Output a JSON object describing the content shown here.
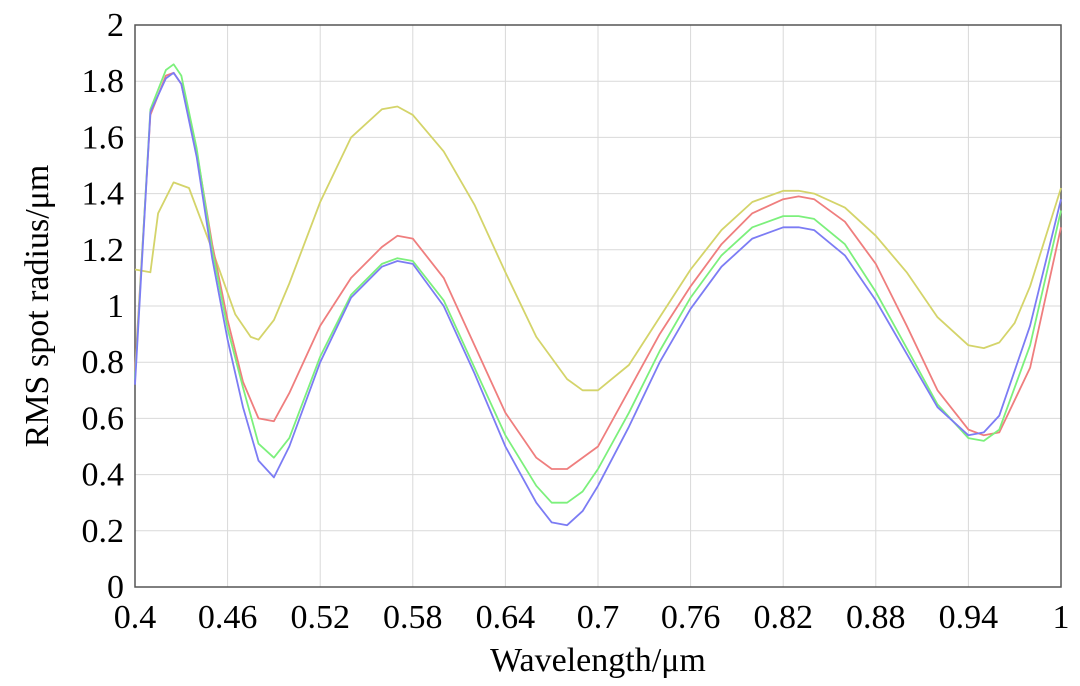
{
  "chart_data": {
    "type": "line",
    "title": "",
    "xlabel": "Wavelength/μm",
    "ylabel": "RMS spot radius/μm",
    "xlim": [
      0.4,
      1.0
    ],
    "ylim": [
      0,
      2
    ],
    "grid": true,
    "legend": "none",
    "x_ticks": [
      0.4,
      0.46,
      0.52,
      0.58,
      0.64,
      0.7,
      0.76,
      0.82,
      0.88,
      0.94,
      1.0
    ],
    "x_tick_labels": [
      "0.4",
      "0.46",
      "0.52",
      "0.58",
      "0.64",
      "0.7",
      "0.76",
      "0.82",
      "0.88",
      "0.94",
      "1"
    ],
    "y_ticks": [
      0,
      0.2,
      0.4,
      0.6,
      0.8,
      1.0,
      1.2,
      1.4,
      1.6,
      1.8,
      2.0
    ],
    "y_tick_labels": [
      "0",
      "0.2",
      "0.4",
      "0.6",
      "0.8",
      "1",
      "1.2",
      "1.4",
      "1.6",
      "1.8",
      "2"
    ],
    "series": [
      {
        "color": "#d4d46a",
        "x": [
          0.4,
          0.41,
          0.415,
          0.425,
          0.435,
          0.45,
          0.465,
          0.475,
          0.48,
          0.49,
          0.5,
          0.52,
          0.54,
          0.56,
          0.57,
          0.58,
          0.6,
          0.62,
          0.64,
          0.66,
          0.68,
          0.69,
          0.7,
          0.72,
          0.74,
          0.76,
          0.78,
          0.8,
          0.82,
          0.83,
          0.84,
          0.86,
          0.88,
          0.9,
          0.92,
          0.94,
          0.95,
          0.96,
          0.97,
          0.98,
          1.0
        ],
        "y": [
          1.13,
          1.12,
          1.33,
          1.44,
          1.42,
          1.2,
          0.97,
          0.89,
          0.88,
          0.95,
          1.08,
          1.37,
          1.6,
          1.7,
          1.71,
          1.68,
          1.55,
          1.36,
          1.12,
          0.89,
          0.74,
          0.7,
          0.7,
          0.79,
          0.96,
          1.13,
          1.27,
          1.37,
          1.41,
          1.41,
          1.4,
          1.35,
          1.25,
          1.12,
          0.96,
          0.86,
          0.85,
          0.87,
          0.94,
          1.07,
          1.42
        ]
      },
      {
        "color": "#ef7e7e",
        "x": [
          0.4,
          0.41,
          0.42,
          0.425,
          0.43,
          0.44,
          0.45,
          0.46,
          0.47,
          0.48,
          0.49,
          0.5,
          0.52,
          0.54,
          0.56,
          0.57,
          0.58,
          0.6,
          0.62,
          0.64,
          0.66,
          0.67,
          0.68,
          0.7,
          0.72,
          0.74,
          0.76,
          0.78,
          0.8,
          0.82,
          0.83,
          0.84,
          0.86,
          0.88,
          0.9,
          0.92,
          0.94,
          0.95,
          0.96,
          0.98,
          1.0
        ],
        "y": [
          0.77,
          1.68,
          1.82,
          1.83,
          1.79,
          1.55,
          1.22,
          0.95,
          0.73,
          0.6,
          0.59,
          0.69,
          0.93,
          1.1,
          1.21,
          1.25,
          1.24,
          1.1,
          0.86,
          0.62,
          0.46,
          0.42,
          0.42,
          0.5,
          0.7,
          0.9,
          1.07,
          1.22,
          1.33,
          1.38,
          1.39,
          1.38,
          1.3,
          1.15,
          0.93,
          0.7,
          0.56,
          0.54,
          0.55,
          0.78,
          1.28
        ]
      },
      {
        "color": "#7cf07c",
        "x": [
          0.4,
          0.41,
          0.42,
          0.425,
          0.43,
          0.44,
          0.45,
          0.46,
          0.47,
          0.48,
          0.49,
          0.5,
          0.52,
          0.54,
          0.56,
          0.57,
          0.58,
          0.6,
          0.62,
          0.64,
          0.66,
          0.67,
          0.68,
          0.69,
          0.7,
          0.72,
          0.74,
          0.76,
          0.78,
          0.8,
          0.82,
          0.83,
          0.84,
          0.86,
          0.88,
          0.9,
          0.92,
          0.94,
          0.95,
          0.96,
          0.98,
          1.0
        ],
        "y": [
          0.74,
          1.7,
          1.84,
          1.86,
          1.82,
          1.56,
          1.2,
          0.92,
          0.71,
          0.51,
          0.46,
          0.53,
          0.82,
          1.04,
          1.15,
          1.17,
          1.16,
          1.02,
          0.78,
          0.54,
          0.36,
          0.3,
          0.3,
          0.34,
          0.42,
          0.62,
          0.84,
          1.03,
          1.18,
          1.28,
          1.32,
          1.32,
          1.31,
          1.22,
          1.05,
          0.85,
          0.65,
          0.53,
          0.52,
          0.56,
          0.86,
          1.34
        ]
      },
      {
        "color": "#7c7cf4",
        "x": [
          0.4,
          0.41,
          0.42,
          0.425,
          0.43,
          0.44,
          0.45,
          0.46,
          0.47,
          0.48,
          0.49,
          0.5,
          0.52,
          0.54,
          0.56,
          0.57,
          0.58,
          0.6,
          0.62,
          0.64,
          0.66,
          0.67,
          0.68,
          0.69,
          0.7,
          0.72,
          0.74,
          0.76,
          0.78,
          0.8,
          0.82,
          0.83,
          0.84,
          0.86,
          0.88,
          0.9,
          0.92,
          0.94,
          0.95,
          0.96,
          0.98,
          1.0
        ],
        "y": [
          0.72,
          1.69,
          1.81,
          1.83,
          1.79,
          1.53,
          1.17,
          0.88,
          0.64,
          0.45,
          0.39,
          0.5,
          0.8,
          1.03,
          1.14,
          1.16,
          1.15,
          1.0,
          0.76,
          0.5,
          0.3,
          0.23,
          0.22,
          0.27,
          0.36,
          0.57,
          0.8,
          0.99,
          1.14,
          1.24,
          1.28,
          1.28,
          1.27,
          1.18,
          1.02,
          0.83,
          0.64,
          0.54,
          0.55,
          0.61,
          0.93,
          1.38
        ]
      }
    ]
  }
}
